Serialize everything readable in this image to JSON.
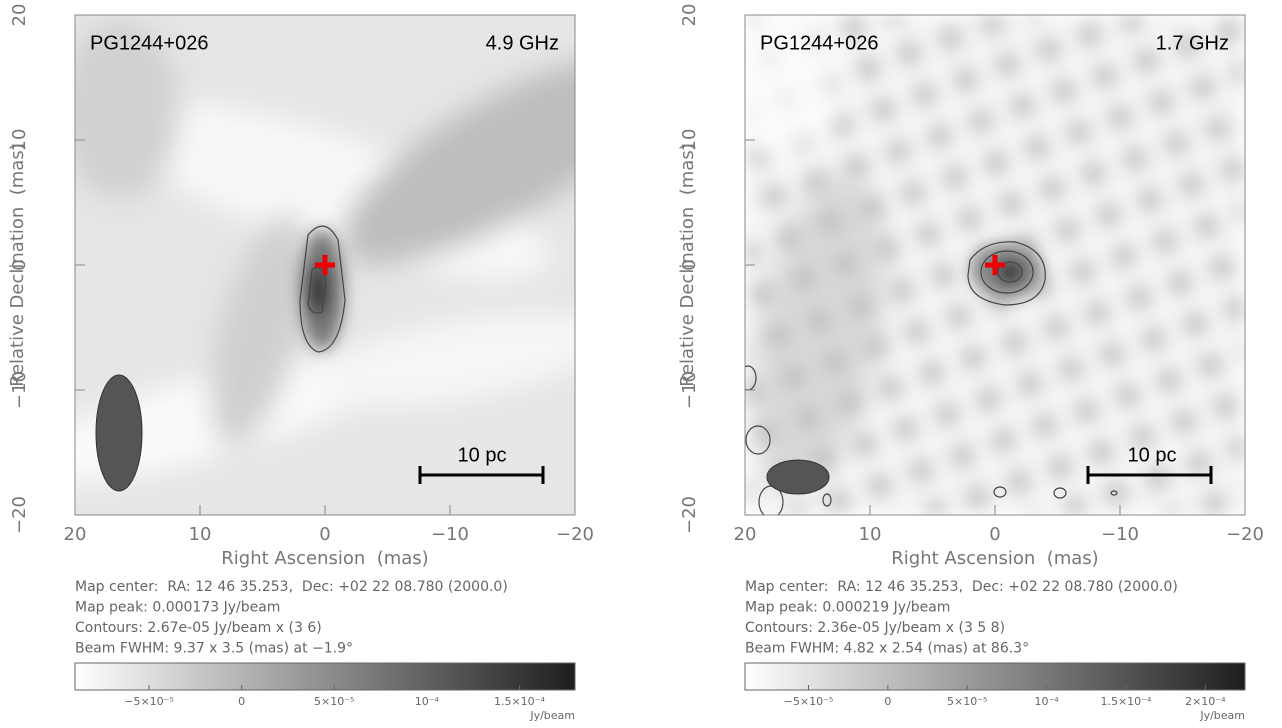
{
  "chart_data": [
    {
      "type": "map",
      "source": "PG1244+026",
      "frequency": "4.9 GHz",
      "scale_bar": "10 pc",
      "xlabel": "Right Ascension  (mas)",
      "ylabel": "Relative Declination  (mas)",
      "xlim": [
        20,
        -20
      ],
      "ylim": [
        -20,
        20
      ],
      "xticks": [
        20,
        10,
        0,
        {
          "value": -10,
          "label": "−10"
        },
        {
          "value": -20,
          "label": "−20"
        }
      ],
      "yticks": [
        {
          "value": -20,
          "label": "−20"
        },
        {
          "value": -10,
          "label": "−10"
        },
        0,
        10,
        20
      ],
      "notes": [
        "Map center:  RA: 12 46 35.253,  Dec: +02 22 08.780 (2000.0)",
        "Map peak: 0.000173 Jy/beam",
        "Contours: 2.67e-05 Jy/beam x (3 6)",
        "Beam FWHM: 9.37 x 3.5 (mas) at −1.9°"
      ],
      "colormap": [
        "#ffffff",
        "#1e1e1e"
      ],
      "colorbar": {
        "label": "Jy/beam",
        "clim": [
          -9e-05,
          0.00018
        ],
        "ticks": [
          {
            "value": -5e-05,
            "label": "−5×10⁻⁵"
          },
          0,
          {
            "value": 5e-05,
            "label": "5×10⁻⁵"
          },
          {
            "value": 0.0001,
            "label": "10⁻⁴"
          },
          {
            "value": 0.00015,
            "label": "1.5×10⁻⁴"
          }
        ]
      }
    },
    {
      "type": "map",
      "source": "PG1244+026",
      "frequency": "1.7 GHz",
      "scale_bar": "10 pc",
      "xlabel": "Right Ascension  (mas)",
      "ylabel": "Relative Declination  (mas)",
      "xlim": [
        20,
        -20
      ],
      "ylim": [
        -20,
        20
      ],
      "xticks": [
        20,
        10,
        0,
        {
          "value": -10,
          "label": "−10"
        },
        {
          "value": -20,
          "label": "−20"
        }
      ],
      "yticks": [
        {
          "value": -20,
          "label": "−20"
        },
        {
          "value": -10,
          "label": "−10"
        },
        0,
        10,
        20
      ],
      "notes": [
        "Map center:  RA: 12 46 35.253,  Dec: +02 22 08.780 (2000.0)",
        "Map peak: 0.000219 Jy/beam",
        "Contours: 2.36e-05 Jy/beam x (3 5 8)",
        "Beam FWHM: 4.82 x 2.54 (mas) at 86.3°"
      ],
      "colormap": [
        "#ffffff",
        "#1e1e1e"
      ],
      "colorbar": {
        "label": "Jy/beam",
        "clim": [
          -9e-05,
          0.000225
        ],
        "ticks": [
          {
            "value": -5e-05,
            "label": "−5×10⁻⁵"
          },
          0,
          {
            "value": 5e-05,
            "label": "5×10⁻⁵"
          },
          {
            "value": 0.0001,
            "label": "10⁻⁴"
          },
          {
            "value": 0.00015,
            "label": "1.5×10⁻⁴"
          },
          {
            "value": 0.0002,
            "label": "2×10⁻⁴"
          }
        ]
      }
    }
  ]
}
